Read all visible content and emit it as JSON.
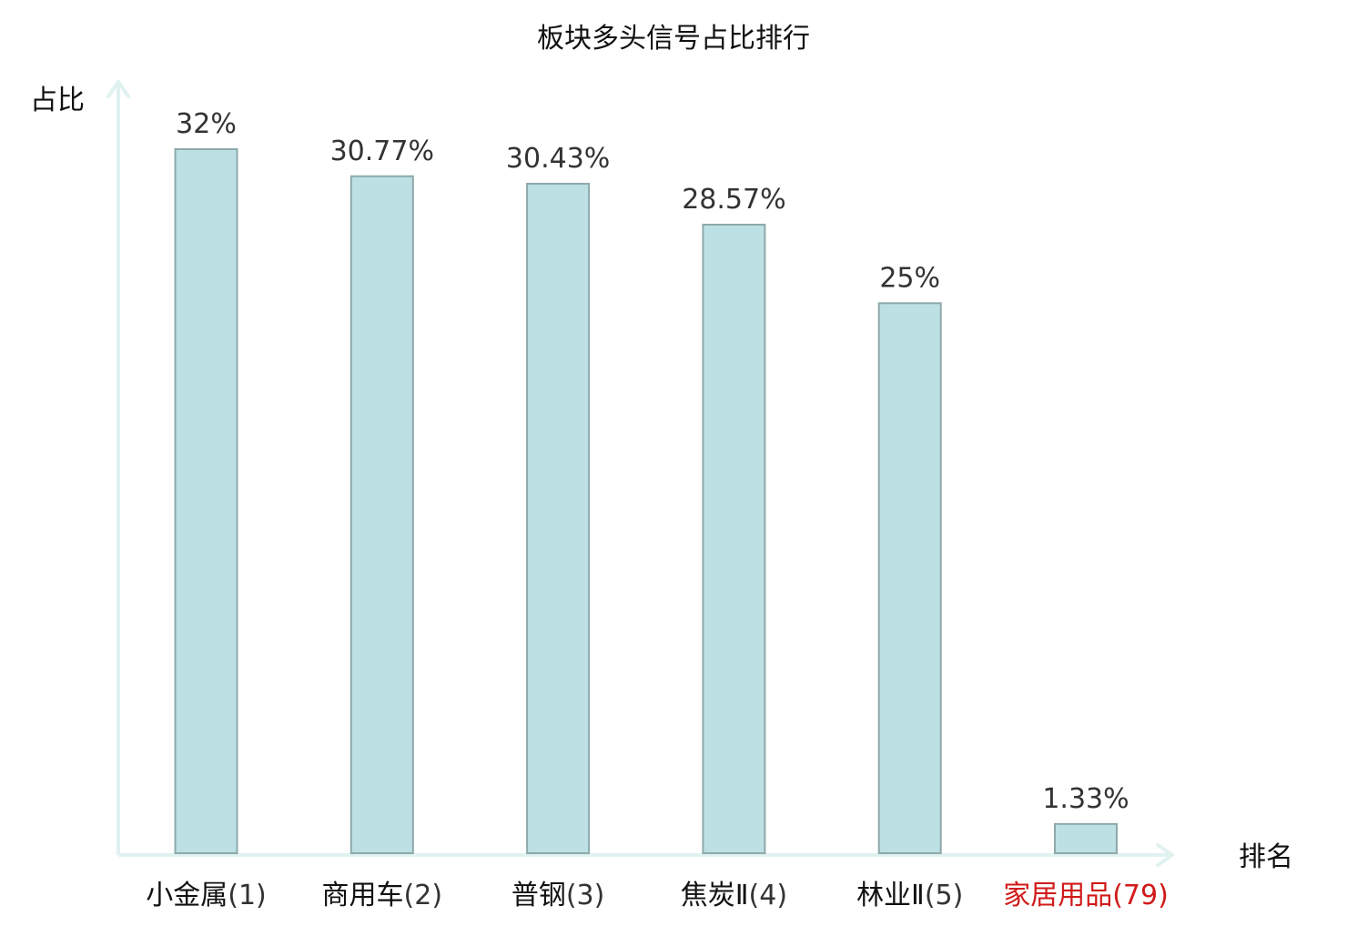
{
  "chart_data": {
    "type": "bar",
    "title": "板块多头信号占比排行",
    "ylabel": "占比",
    "xlabel": "排名",
    "ylim": [
      0,
      32
    ],
    "grid": false,
    "categories": [
      {
        "name": "小金属",
        "rank": "(1)",
        "highlight": false
      },
      {
        "name": "商用车",
        "rank": "(2)",
        "highlight": false
      },
      {
        "name": "普钢",
        "rank": "(3)",
        "highlight": false
      },
      {
        "name": "焦炭Ⅱ",
        "rank": "(4)",
        "highlight": false
      },
      {
        "name": "林业Ⅱ",
        "rank": "(5)",
        "highlight": false
      },
      {
        "name": "家居用品",
        "rank": "(79)",
        "highlight": true
      }
    ],
    "values": [
      32,
      30.77,
      30.43,
      28.57,
      25,
      1.33
    ],
    "value_labels": [
      "32%",
      "30.77%",
      "30.43%",
      "28.57%",
      "25%",
      "1.33%"
    ]
  },
  "colors": {
    "bar_fill": "#bce0e3",
    "bar_stroke": "#8ea9ab",
    "axis": "#e0f2f0",
    "label_default": "#111111",
    "label_rank_default": "#333333",
    "label_highlight": "#d11a1a",
    "value_text": "#333333"
  }
}
